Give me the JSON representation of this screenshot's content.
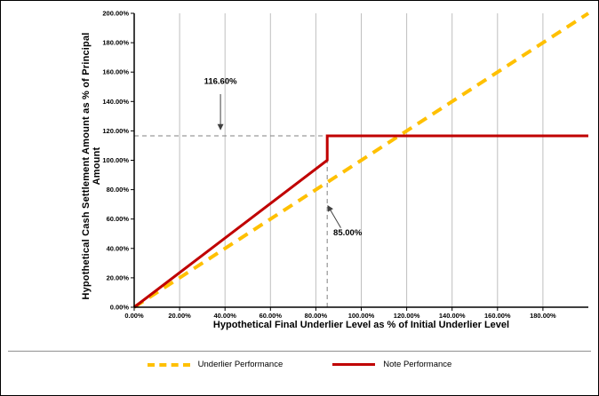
{
  "chart_data": {
    "type": "line",
    "title": "",
    "xlabel": "Hypothetical Final Underlier Level as % of Initial Underlier Level",
    "ylabel": "Hypothetical Cash Settlement Amount as % of Principal Amount",
    "xlim": [
      0,
      200
    ],
    "ylim": [
      0,
      200
    ],
    "grid": "vertical",
    "legend_position": "bottom",
    "x_ticks": [
      0,
      20,
      40,
      60,
      80,
      100,
      120,
      140,
      160,
      180
    ],
    "x_tick_labels": [
      "0.00%",
      "20.00%",
      "40.00%",
      "60.00%",
      "80.00%",
      "100.00%",
      "120.00%",
      "140.00%",
      "160.00%",
      "180.00%"
    ],
    "y_ticks": [
      0,
      20,
      40,
      60,
      80,
      100,
      120,
      140,
      160,
      180,
      200
    ],
    "y_tick_labels": [
      "0.00%",
      "20.00%",
      "40.00%",
      "60.00%",
      "80.00%",
      "100.00%",
      "120.00%",
      "140.00%",
      "160.00%",
      "180.00%",
      "200.00%"
    ],
    "series": [
      {
        "name": "Underlier Performance",
        "color": "#FFC000",
        "style": "dashed",
        "width": 4,
        "points": [
          [
            0,
            0
          ],
          [
            200,
            200
          ]
        ]
      },
      {
        "name": "Note Performance",
        "color": "#C00000",
        "style": "solid",
        "width": 3,
        "points": [
          [
            0,
            0
          ],
          [
            85,
            100
          ],
          [
            85,
            116.6
          ],
          [
            200,
            116.6
          ]
        ]
      }
    ],
    "reference_lines": [
      {
        "orient": "h",
        "y": 116.6,
        "x1": 0,
        "x2": 85,
        "color": "#808080"
      },
      {
        "orient": "v",
        "x": 85,
        "y1": 0,
        "y2": 100,
        "color": "#808080"
      }
    ],
    "annotations": [
      {
        "text": "116.60%",
        "text_x": 38,
        "text_y": 152,
        "arrow_from": [
          38,
          145
        ],
        "arrow_to": [
          38,
          121
        ]
      },
      {
        "text": "85.00%",
        "text_x": 94,
        "text_y": 49,
        "arrow_from": [
          91,
          54
        ],
        "arrow_to": [
          85.3,
          69
        ]
      }
    ],
    "colors": {
      "grid": "#bfbfbf",
      "axis": "#000000",
      "annotation": "#404040",
      "divider": "#909090"
    }
  },
  "legend": {
    "items": [
      {
        "label": "Underlier Performance"
      },
      {
        "label": "Note Performance"
      }
    ]
  }
}
